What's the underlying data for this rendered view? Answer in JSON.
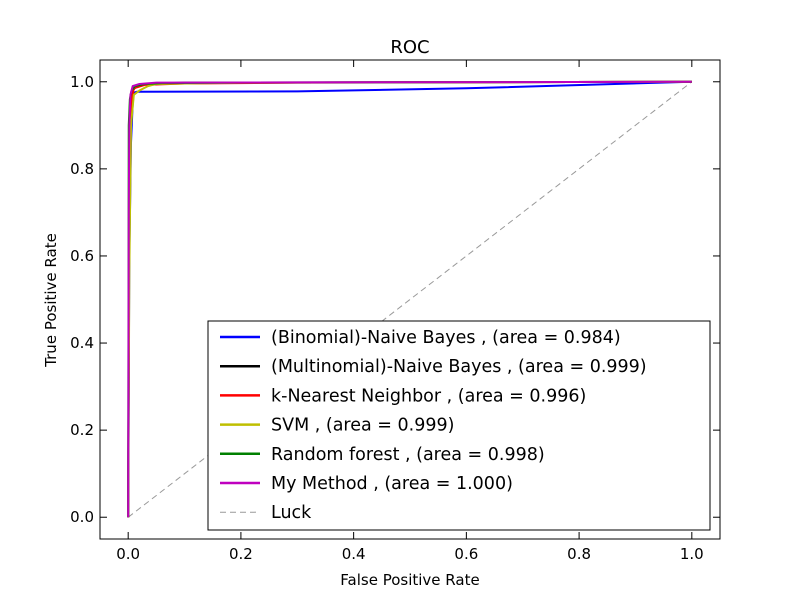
{
  "chart_data": {
    "type": "line",
    "title": "ROC",
    "xlabel": "False Positive Rate",
    "ylabel": "True Positive Rate",
    "xlim": [
      -0.05,
      1.05
    ],
    "ylim": [
      -0.05,
      1.05
    ],
    "xticks": [
      "0.0",
      "0.2",
      "0.4",
      "0.6",
      "0.8",
      "1.0"
    ],
    "yticks": [
      "0.0",
      "0.2",
      "0.4",
      "0.6",
      "0.8",
      "1.0"
    ],
    "grid": false,
    "legend_position": "lower-right",
    "series": [
      {
        "name": "(Binomial)-Naive Bayes , (area = 0.984)",
        "color": "#0000ff",
        "x": [
          0.0,
          0.002,
          0.005,
          0.008,
          0.01,
          0.015,
          0.3,
          0.6,
          1.0
        ],
        "y": [
          0.0,
          0.6,
          0.86,
          0.95,
          0.975,
          0.977,
          0.978,
          0.985,
          1.0
        ]
      },
      {
        "name": "(Multinomial)-Naive Bayes , (area = 0.999)",
        "color": "#000000",
        "x": [
          0.0,
          0.002,
          0.004,
          0.008,
          0.015,
          0.03,
          0.1,
          1.0
        ],
        "y": [
          0.0,
          0.85,
          0.95,
          0.98,
          0.99,
          0.995,
          0.998,
          1.0
        ]
      },
      {
        "name": "k-Nearest Neighbor , (area = 0.996)",
        "color": "#ff0000",
        "x": [
          0.0,
          0.002,
          0.005,
          0.01,
          0.03,
          0.1,
          0.3,
          1.0
        ],
        "y": [
          0.0,
          0.8,
          0.95,
          0.985,
          0.993,
          0.996,
          0.998,
          1.0
        ]
      },
      {
        "name": "SVM , (area = 0.999)",
        "color": "#bfbf00",
        "x": [
          0.0,
          0.002,
          0.005,
          0.01,
          0.02,
          0.035,
          0.05,
          0.2,
          1.0
        ],
        "y": [
          0.0,
          0.56,
          0.9,
          0.97,
          0.98,
          0.99,
          0.995,
          0.998,
          1.0
        ]
      },
      {
        "name": "Random forest , (area = 0.998)",
        "color": "#008000",
        "x": [
          0.0,
          0.001,
          0.003,
          0.006,
          0.012,
          0.03,
          0.06,
          0.2,
          1.0
        ],
        "y": [
          0.0,
          0.9,
          0.96,
          0.98,
          0.99,
          0.995,
          0.997,
          0.998,
          1.0
        ]
      },
      {
        "name": "My Method , (area = 1.000)",
        "color": "#bf00bf",
        "x": [
          0.0,
          0.001,
          0.002,
          0.004,
          0.008,
          0.02,
          0.05,
          1.0
        ],
        "y": [
          0.0,
          0.7,
          0.9,
          0.97,
          0.99,
          0.995,
          0.998,
          1.0
        ]
      },
      {
        "name": "Luck",
        "color": "#999999",
        "dashed": true,
        "x": [
          0.0,
          1.0
        ],
        "y": [
          0.0,
          1.0
        ]
      }
    ]
  }
}
